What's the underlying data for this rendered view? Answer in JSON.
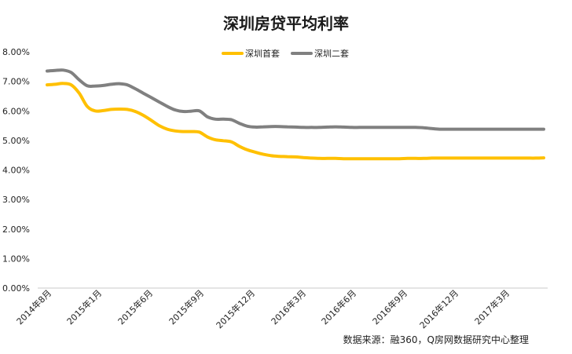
{
  "chart_data": {
    "type": "line",
    "title": "深圳房贷平均利率",
    "source": "数据来源：融360，Q房网数据研究中心整理",
    "xlabel": "",
    "ylabel": "",
    "ylim": [
      0,
      8
    ],
    "yticks": [
      "0.00%",
      "1.00%",
      "2.00%",
      "3.00%",
      "4.00%",
      "5.00%",
      "6.00%",
      "7.00%",
      "8.00%"
    ],
    "xticks": [
      "2014年8月",
      "2015年1月",
      "2015年6月",
      "2015年9月",
      "2015年12月",
      "2016年3月",
      "2016年6月",
      "2016年9月",
      "2016年12月",
      "2017年3月"
    ],
    "grid": false,
    "legend_position": "top-center",
    "series": [
      {
        "name": "深圳首套",
        "color": "#FFC000",
        "values": [
          6.88,
          6.9,
          6.93,
          6.88,
          6.6,
          6.15,
          6.0,
          6.01,
          6.05,
          6.06,
          6.05,
          5.98,
          5.85,
          5.68,
          5.5,
          5.38,
          5.32,
          5.3,
          5.3,
          5.28,
          5.12,
          5.02,
          4.99,
          4.95,
          4.8,
          4.68,
          4.6,
          4.53,
          4.48,
          4.46,
          4.45,
          4.44,
          4.42,
          4.4,
          4.39,
          4.39,
          4.39,
          4.38,
          4.38,
          4.38,
          4.38,
          4.38,
          4.38,
          4.38,
          4.38,
          4.39,
          4.39,
          4.39,
          4.4,
          4.4,
          4.4,
          4.4,
          4.4,
          4.4,
          4.4,
          4.4,
          4.4,
          4.4,
          4.4,
          4.4,
          4.4,
          4.4,
          4.41
        ]
      },
      {
        "name": "深圳二套",
        "color": "#808080",
        "values": [
          7.35,
          7.37,
          7.38,
          7.3,
          7.05,
          6.85,
          6.84,
          6.86,
          6.9,
          6.92,
          6.88,
          6.75,
          6.6,
          6.45,
          6.3,
          6.15,
          6.03,
          5.98,
          5.99,
          6.0,
          5.8,
          5.72,
          5.72,
          5.7,
          5.58,
          5.48,
          5.45,
          5.46,
          5.47,
          5.47,
          5.46,
          5.45,
          5.44,
          5.44,
          5.44,
          5.45,
          5.46,
          5.45,
          5.44,
          5.44,
          5.44,
          5.44,
          5.44,
          5.44,
          5.44,
          5.44,
          5.44,
          5.43,
          5.4,
          5.38,
          5.38,
          5.38,
          5.38,
          5.38,
          5.38,
          5.38,
          5.38,
          5.38,
          5.38,
          5.38,
          5.38,
          5.38,
          5.38
        ]
      }
    ]
  }
}
